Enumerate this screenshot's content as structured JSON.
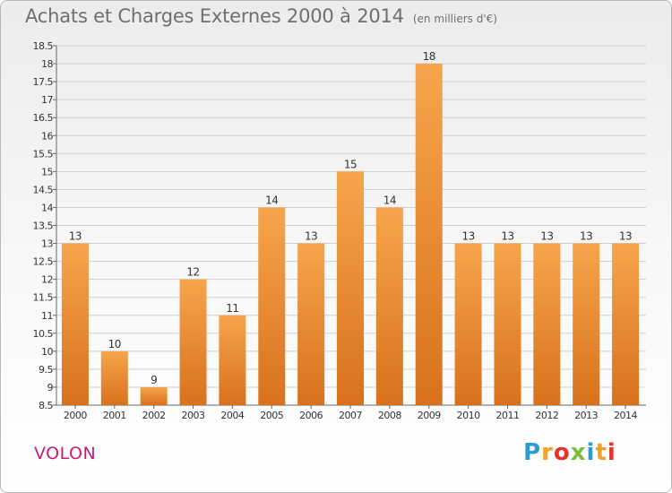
{
  "title": {
    "main": "Achats et Charges Externes 2000 à 2014",
    "unit": "(en milliers d'€)"
  },
  "commune": "VOLON",
  "brand": {
    "letters": [
      "P",
      "r",
      "o",
      "x",
      "i",
      "t",
      "i"
    ],
    "colors": [
      "#2e9ad6",
      "#f5a02a",
      "#e8322c",
      "#7cbd3a",
      "#2e9ad6",
      "#f5a02a",
      "#e8322c"
    ]
  },
  "chart_data": {
    "type": "bar",
    "categories": [
      "2000",
      "2001",
      "2002",
      "2003",
      "2004",
      "2005",
      "2006",
      "2007",
      "2008",
      "2009",
      "2010",
      "2011",
      "2012",
      "2013",
      "2014"
    ],
    "values": [
      13,
      10,
      9,
      12,
      11,
      14,
      13,
      15,
      14,
      18,
      13,
      13,
      13,
      13,
      13
    ],
    "ylim": [
      8.5,
      18.5
    ],
    "yticks": [
      "8.5",
      "9",
      "9.5",
      "10",
      "10.5",
      "11",
      "11.5",
      "12",
      "12.5",
      "13",
      "13.5",
      "14",
      "14.5",
      "15",
      "15.5",
      "16",
      "16.5",
      "17",
      "17.5",
      "18",
      "18.5"
    ],
    "grid": true,
    "bar_color_top": "#f6a54c",
    "bar_color_bottom": "#d9711c"
  }
}
